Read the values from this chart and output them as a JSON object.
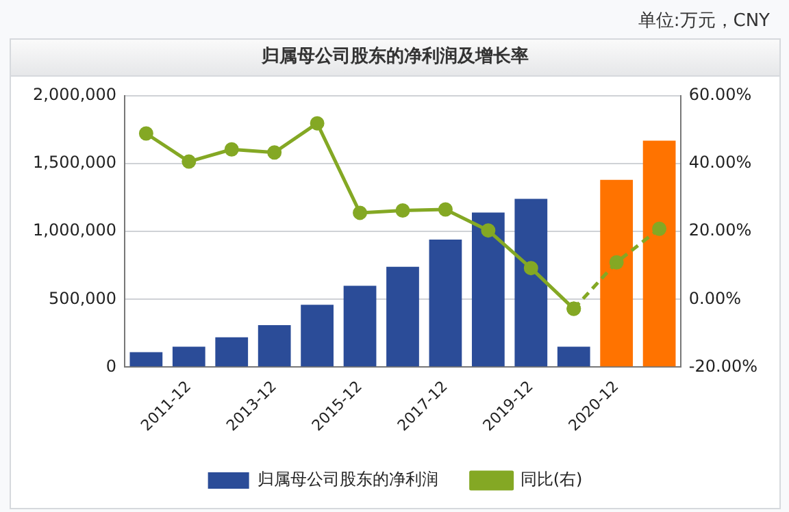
{
  "chart_data": {
    "type": "bar",
    "title": "归属母公司股东的净利润及增长率",
    "annotations": [
      "单位:万元，CNY"
    ],
    "categories": [
      null,
      "2011-12",
      null,
      "2013-12",
      null,
      "2015-12",
      null,
      "2017-12",
      null,
      "2019-12",
      null,
      "2020-12",
      null
    ],
    "series": [
      {
        "name": "归属母公司股东的净利润",
        "color": "#2b4c98",
        "colors": [
          "#2b4c98",
          "#2b4c98",
          "#2b4c98",
          "#2b4c98",
          "#2b4c98",
          "#2b4c98",
          "#2b4c98",
          "#2b4c98",
          "#2b4c98",
          "#2b4c98",
          "#2b4c98",
          "#ff7300",
          "#ff7300"
        ],
        "values": [
          110000,
          150000,
          220000,
          310000,
          460000,
          600000,
          740000,
          940000,
          1140000,
          1240000,
          150000,
          1380000,
          1670000
        ]
      },
      {
        "name": "同比(右)",
        "type": "line",
        "axis": "y2",
        "color": "#84a824",
        "line_style": "solid",
        "marker": "circle",
        "values": [
          48.9,
          40.6,
          44.2,
          43.3,
          51.9,
          25.5,
          26.2,
          26.5,
          20.3,
          9.2,
          -2.8,
          null,
          null
        ]
      },
      {
        "type": "line",
        "axis": "y2",
        "color": "#84a824",
        "line_style": "dashed",
        "marker": "circle",
        "values": [
          null,
          null,
          null,
          null,
          null,
          null,
          null,
          null,
          null,
          null,
          -2.8,
          10.9,
          20.8
        ]
      }
    ],
    "ylim": [
      0,
      2000000
    ],
    "yticks": [
      {
        "value": 0,
        "label": "0"
      },
      {
        "value": 500000,
        "label": "500,000"
      },
      {
        "value": 1000000,
        "label": "1,000,000"
      },
      {
        "value": 1500000,
        "label": "1,500,000"
      },
      {
        "value": 2000000,
        "label": "2,000,000"
      }
    ],
    "y2lim": [
      -20,
      60
    ],
    "y2ticks": [
      {
        "value": -20,
        "label": "-20.00%"
      },
      {
        "value": 0,
        "label": "0.00%"
      },
      {
        "value": 20,
        "label": "20.00%"
      },
      {
        "value": 40,
        "label": "40.00%"
      },
      {
        "value": 60,
        "label": "60.00%"
      }
    ],
    "grid": "y",
    "legend": "bottom"
  }
}
